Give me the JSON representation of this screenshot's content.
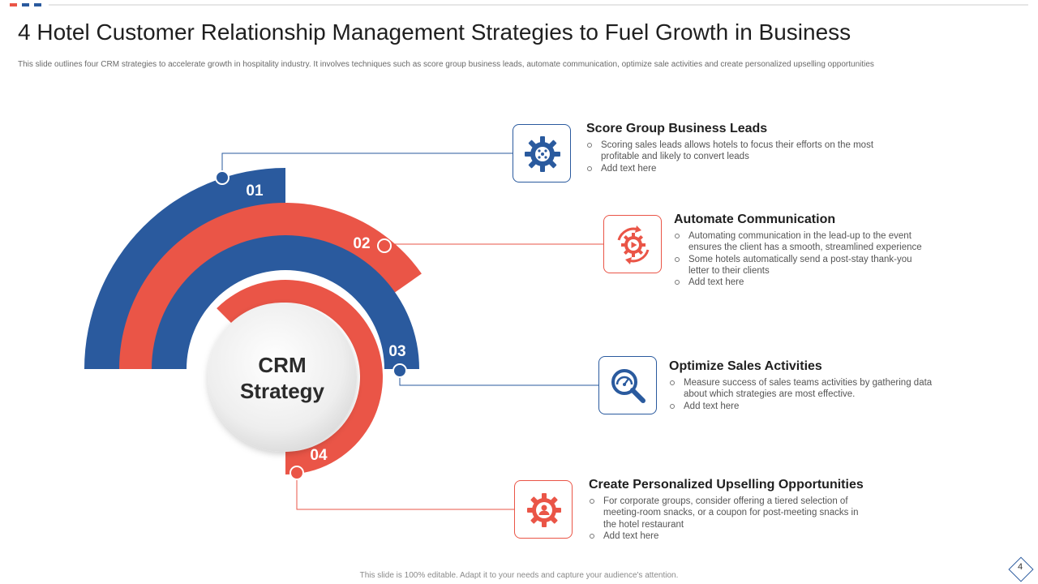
{
  "colors": {
    "blue": "#2a5a9e",
    "red": "#ea5547",
    "center_fill": "#eeeeee",
    "text_dark": "#1f1f1f"
  },
  "header": {
    "title": "4 Hotel Customer Relationship Management Strategies to Fuel Growth in Business",
    "subtitle": "This slide outlines four CRM  strategies to accelerate growth in hospitality industry. It involves techniques such as score group business leads, automate  communication,  optimize sale activities and create personalized upselling opportunities"
  },
  "center": {
    "line1": "CRM",
    "line2": "Strategy"
  },
  "strategies": [
    {
      "number": "01",
      "title": "Score Group Business Leads",
      "icon": "gear-network-icon",
      "points": [
        "Scoring sales leads allows hotels to focus their efforts on the most profitable and likely to convert leads",
        "Add text here"
      ]
    },
    {
      "number": "02",
      "title": "Automate Communication",
      "icon": "automation-play-icon",
      "points": [
        "Automating communication in the lead-up to the event ensures the client has a smooth, streamlined experience",
        "Some hotels automatically send a post-stay thank-you letter to their clients",
        "Add text here"
      ]
    },
    {
      "number": "03",
      "title": "Optimize Sales Activities",
      "icon": "speedometer-magnifier-icon",
      "points": [
        "Measure  success of sales teams activities by gathering data about which strategies are most effective.",
        "Add text here"
      ]
    },
    {
      "number": "04",
      "title": "Create Personalized Upselling Opportunities",
      "icon": "gear-person-icon",
      "points": [
        "For corporate groups, consider offering a tiered selection of meeting-room snacks, or a coupon for post-meeting snacks in the hotel restaurant",
        "Add text here"
      ]
    }
  ],
  "footer": {
    "note": "This slide is 100% editable. Adapt it to your needs and capture your audience's attention.",
    "page": "4"
  }
}
